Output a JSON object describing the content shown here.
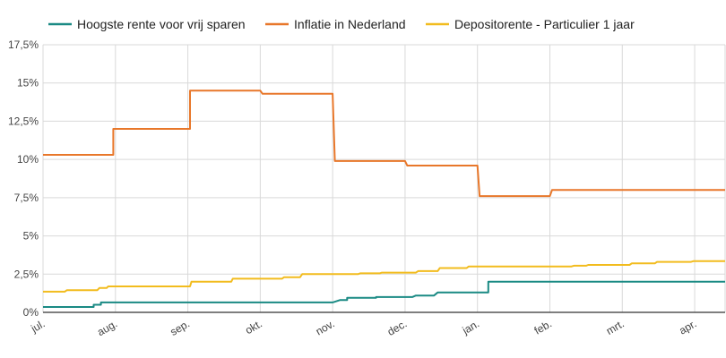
{
  "chart_data": {
    "type": "line",
    "title": "",
    "xlabel": "",
    "ylabel": "",
    "ylim": [
      0,
      17.5
    ],
    "y_ticks": [
      "0%",
      "2,5%",
      "5%",
      "7,5%",
      "10%",
      "12,5%",
      "15%",
      "17,5%"
    ],
    "y_tick_values": [
      0,
      2.5,
      5,
      7.5,
      10,
      12.5,
      15,
      17.5
    ],
    "x_ticks": [
      "jul.",
      "aug.",
      "sep.",
      "okt.",
      "nov.",
      "dec.",
      "jan.",
      "feb.",
      "mrt.",
      "apr."
    ],
    "x_tick_values": [
      0,
      1,
      2,
      3,
      4,
      5,
      6,
      7,
      8,
      9
    ],
    "xlim": [
      0,
      9.42
    ],
    "grid": true,
    "legend_position": "top",
    "series": [
      {
        "name": "Hoogste rente voor vrij sparen",
        "color": "#1a8a84",
        "points": [
          [
            0,
            0.35
          ],
          [
            0.7,
            0.35
          ],
          [
            0.7,
            0.5
          ],
          [
            0.8,
            0.5
          ],
          [
            0.8,
            0.65
          ],
          [
            4.0,
            0.65
          ],
          [
            4.1,
            0.8
          ],
          [
            4.2,
            0.8
          ],
          [
            4.2,
            0.95
          ],
          [
            4.6,
            0.95
          ],
          [
            4.6,
            1.0
          ],
          [
            5.1,
            1.0
          ],
          [
            5.15,
            1.1
          ],
          [
            5.4,
            1.1
          ],
          [
            5.45,
            1.3
          ],
          [
            6.15,
            1.3
          ],
          [
            6.15,
            2.0
          ],
          [
            9.42,
            2.0
          ]
        ]
      },
      {
        "name": "Inflatie in Nederland",
        "color": "#e8772a",
        "points": [
          [
            0,
            10.3
          ],
          [
            0.97,
            10.3
          ],
          [
            0.97,
            12.0
          ],
          [
            2.03,
            12.0
          ],
          [
            2.03,
            14.5
          ],
          [
            3.0,
            14.5
          ],
          [
            3.03,
            14.3
          ],
          [
            4.0,
            14.3
          ],
          [
            4.03,
            9.9
          ],
          [
            5.0,
            9.9
          ],
          [
            5.03,
            9.6
          ],
          [
            6.0,
            9.6
          ],
          [
            6.03,
            7.6
          ],
          [
            7.0,
            7.6
          ],
          [
            7.03,
            8.0
          ],
          [
            9.42,
            8.0
          ]
        ]
      },
      {
        "name": "Depositorente - Particulier 1 jaar",
        "color": "#f2bc1e",
        "points": [
          [
            0,
            1.35
          ],
          [
            0.3,
            1.35
          ],
          [
            0.33,
            1.45
          ],
          [
            0.75,
            1.45
          ],
          [
            0.78,
            1.6
          ],
          [
            0.88,
            1.6
          ],
          [
            0.9,
            1.7
          ],
          [
            2.03,
            1.7
          ],
          [
            2.05,
            2.0
          ],
          [
            2.6,
            2.0
          ],
          [
            2.62,
            2.2
          ],
          [
            3.3,
            2.2
          ],
          [
            3.33,
            2.3
          ],
          [
            3.55,
            2.3
          ],
          [
            3.58,
            2.5
          ],
          [
            4.35,
            2.5
          ],
          [
            4.38,
            2.55
          ],
          [
            4.65,
            2.55
          ],
          [
            4.68,
            2.6
          ],
          [
            5.15,
            2.6
          ],
          [
            5.18,
            2.7
          ],
          [
            5.45,
            2.7
          ],
          [
            5.48,
            2.9
          ],
          [
            5.85,
            2.9
          ],
          [
            5.88,
            3.0
          ],
          [
            7.3,
            3.0
          ],
          [
            7.33,
            3.05
          ],
          [
            7.5,
            3.05
          ],
          [
            7.53,
            3.1
          ],
          [
            8.1,
            3.1
          ],
          [
            8.13,
            3.2
          ],
          [
            8.45,
            3.2
          ],
          [
            8.48,
            3.3
          ],
          [
            8.95,
            3.3
          ],
          [
            8.98,
            3.35
          ],
          [
            9.42,
            3.35
          ]
        ]
      }
    ]
  }
}
